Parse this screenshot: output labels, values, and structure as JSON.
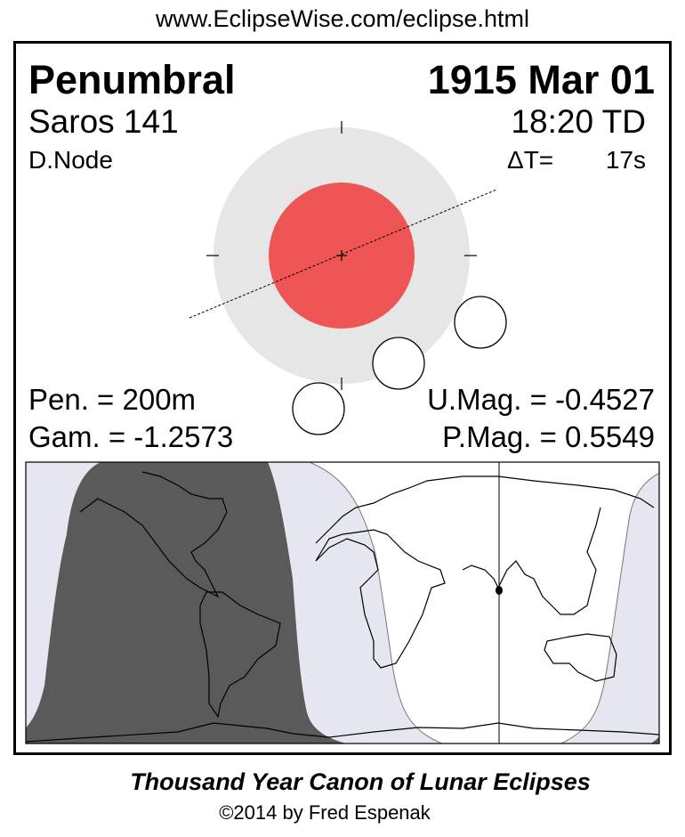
{
  "header": {
    "url": "www.EclipseWise.com/eclipse.html"
  },
  "eclipse": {
    "type": "Penumbral",
    "date": "1915 Mar 01",
    "saros": "Saros 141",
    "time": "18:20 TD",
    "node": "D.Node",
    "delta_t_label": "ΔT=",
    "delta_t_value": "17s",
    "pen_duration": "Pen. = 200m",
    "gamma": "Gam. = -1.2573",
    "umbral_mag": "U.Mag. = -0.4527",
    "penumbral_mag": "P.Mag. = 0.5549"
  },
  "colors": {
    "penumbra": "#e6e6e6",
    "umbra": "#ef5555",
    "night_map": "#5a5a5a",
    "penumbral_zone_map": "#e6e6f0"
  },
  "footer": {
    "title": "Thousand Year Canon of Lunar Eclipses",
    "copyright": "©2014 by Fred Espenak"
  }
}
